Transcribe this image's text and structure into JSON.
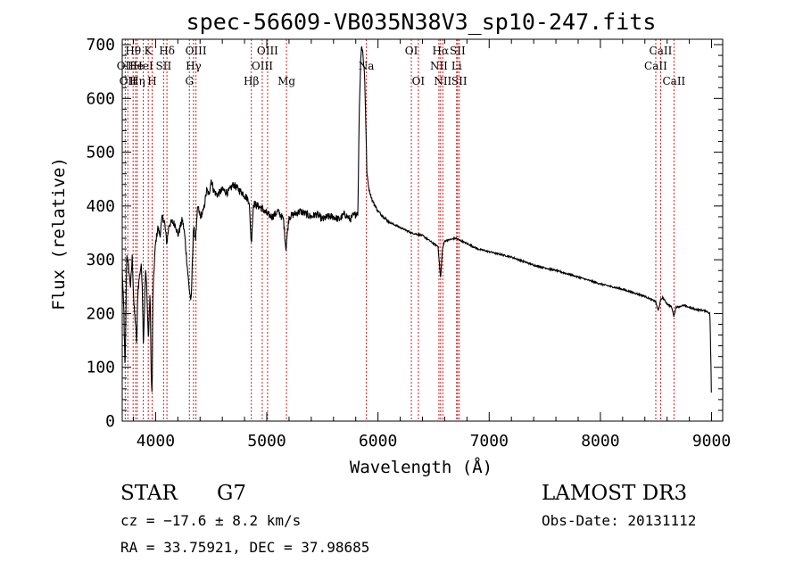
{
  "chart_data": {
    "type": "line",
    "title": "spec-56609-VB035N38V3_sp10-247.fits",
    "xlabel": "Wavelength (Å)",
    "ylabel": "Flux (relative)",
    "xlim": [
      3700,
      9100
    ],
    "ylim": [
      0,
      710
    ],
    "xticks": [
      4000,
      5000,
      6000,
      7000,
      8000,
      9000
    ],
    "yticks": [
      0,
      100,
      200,
      300,
      400,
      500,
      600,
      700
    ],
    "series": [
      {
        "name": "spectrum",
        "x": [
          3700,
          3715,
          3725,
          3730,
          3740,
          3755,
          3765,
          3775,
          3790,
          3805,
          3820,
          3830,
          3840,
          3855,
          3870,
          3880,
          3890,
          3900,
          3910,
          3920,
          3935,
          3950,
          3962,
          3969,
          3975,
          3990,
          4000,
          4020,
          4040,
          4060,
          4080,
          4101,
          4120,
          4150,
          4180,
          4200,
          4240,
          4260,
          4280,
          4300,
          4320,
          4340,
          4360,
          4380,
          4400,
          4430,
          4460,
          4480,
          4500,
          4520,
          4550,
          4600,
          4650,
          4700,
          4750,
          4800,
          4840,
          4861,
          4880,
          4920,
          4960,
          5000,
          5050,
          5100,
          5150,
          5172,
          5183,
          5200,
          5250,
          5300,
          5350,
          5400,
          5450,
          5500,
          5550,
          5600,
          5650,
          5700,
          5750,
          5770,
          5800,
          5820,
          5830,
          5840,
          5850,
          5860,
          5870,
          5880,
          5890,
          5900,
          5920,
          5950,
          6000,
          6050,
          6100,
          6200,
          6300,
          6400,
          6500,
          6540,
          6563,
          6580,
          6600,
          6700,
          6800,
          6900,
          7000,
          7200,
          7400,
          7600,
          7800,
          8000,
          8200,
          8400,
          8498,
          8520,
          8542,
          8560,
          8600,
          8640,
          8662,
          8680,
          8750,
          8850,
          8950,
          8985,
          8995,
          9000
        ],
        "values": [
          280,
          200,
          95,
          150,
          310,
          290,
          270,
          250,
          305,
          215,
          180,
          145,
          240,
          270,
          290,
          255,
          140,
          210,
          280,
          250,
          150,
          240,
          70,
          50,
          230,
          300,
          330,
          360,
          345,
          380,
          370,
          330,
          365,
          370,
          365,
          345,
          375,
          350,
          300,
          250,
          220,
          360,
          340,
          400,
          380,
          390,
          430,
          420,
          450,
          430,
          420,
          430,
          425,
          440,
          430,
          420,
          410,
          330,
          405,
          400,
          395,
          385,
          380,
          390,
          375,
          320,
          345,
          380,
          385,
          390,
          385,
          380,
          385,
          375,
          380,
          380,
          375,
          385,
          375,
          380,
          385,
          390,
          560,
          640,
          700,
          690,
          670,
          640,
          560,
          460,
          430,
          410,
          390,
          380,
          370,
          360,
          350,
          345,
          330,
          325,
          265,
          320,
          335,
          340,
          330,
          320,
          315,
          305,
          290,
          280,
          268,
          255,
          245,
          232,
          222,
          205,
          225,
          230,
          218,
          212,
          195,
          212,
          215,
          208,
          205,
          200,
          100,
          20
        ],
        "color": "#000000"
      }
    ],
    "lines": [
      {
        "wl": 3727,
        "label": "OII",
        "row": 2
      },
      {
        "wl": 3750,
        "label": "OII",
        "row": 3
      },
      {
        "wl": 3798,
        "label": "Hθ",
        "row": 1
      },
      {
        "wl": 3820,
        "label": "He",
        "row": 2
      },
      {
        "wl": 3835,
        "label": "Hη",
        "row": 3
      },
      {
        "wl": 3889,
        "label": "HeI",
        "row": 2
      },
      {
        "wl": 3934,
        "label": "K",
        "row": 1
      },
      {
        "wl": 3969,
        "label": "H",
        "row": 3
      },
      {
        "wl": 4072,
        "label": "SII",
        "row": 2
      },
      {
        "wl": 4102,
        "label": "Hδ",
        "row": 1
      },
      {
        "wl": 4304,
        "label": "G",
        "row": 3
      },
      {
        "wl": 4341,
        "label": "Hγ",
        "row": 2
      },
      {
        "wl": 4363,
        "label": "OIII",
        "row": 1
      },
      {
        "wl": 4861,
        "label": "Hβ",
        "row": 3
      },
      {
        "wl": 4959,
        "label": "OIII",
        "row": 2
      },
      {
        "wl": 5007,
        "label": "OIII",
        "row": 1
      },
      {
        "wl": 5177,
        "label": "Mg",
        "row": 3
      },
      {
        "wl": 5895,
        "label": "Na",
        "row": 2
      },
      {
        "wl": 6300,
        "label": "OI",
        "row": 1
      },
      {
        "wl": 6363,
        "label": "OI",
        "row": 3
      },
      {
        "wl": 6548,
        "label": "NII",
        "row": 2
      },
      {
        "wl": 6563,
        "label": "Hα",
        "row": 1
      },
      {
        "wl": 6583,
        "label": "NII",
        "row": 3
      },
      {
        "wl": 6707,
        "label": "Li",
        "row": 2
      },
      {
        "wl": 6716,
        "label": "SII",
        "row": 1
      },
      {
        "wl": 6731,
        "label": "SII",
        "row": 3
      },
      {
        "wl": 8498,
        "label": "CaII",
        "row": 2
      },
      {
        "wl": 8542,
        "label": "CaII",
        "row": 1
      },
      {
        "wl": 8662,
        "label": "CaII",
        "row": 3
      }
    ]
  },
  "info": {
    "object_class": "STAR",
    "subclass": "G7",
    "survey": "LAMOST DR3",
    "redshift": "cz = −17.6 ± 8.2 km/s",
    "obs_date": "Obs-Date: 20131112",
    "coords": "RA =  33.75921, DEC =  37.98685"
  }
}
